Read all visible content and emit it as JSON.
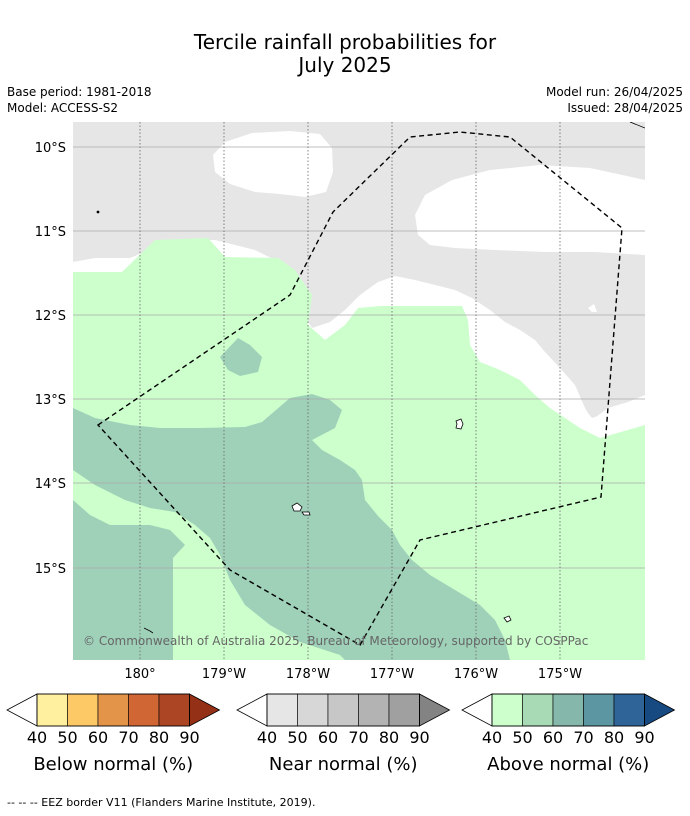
{
  "title_line1": "Tercile rainfall probabilities for",
  "title_line2": "July 2025",
  "meta": {
    "base_period": "Base period: 1981-2018",
    "model": "Model: ACCESS-S2",
    "model_run": "Model run: 26/04/2025",
    "issued": "Issued: 28/04/2025"
  },
  "map": {
    "lat_labels": [
      "10°S",
      "11°S",
      "12°S",
      "13°S",
      "14°S",
      "15°S"
    ],
    "lon_labels": [
      "180°",
      "179°W",
      "178°W",
      "177°W",
      "176°W",
      "175°W"
    ],
    "copyright": "© Commonwealth of Australia 2025, Bureau of Meteorology, supported by COSPPac",
    "colors": {
      "near_normal_40": "#e6e6e6",
      "above_normal_40": "#ccffcc",
      "above_normal_50": "#9fd1b9",
      "land_fill": "#ffffff",
      "grid": "#aaaaaa",
      "eez_border": "#000000"
    }
  },
  "colorbars": [
    {
      "label": "Below normal (%)",
      "ticks": [
        "40",
        "50",
        "60",
        "70",
        "80",
        "90"
      ],
      "colors": [
        "#fff0a0",
        "#fdc967",
        "#e39449",
        "#d06633",
        "#ac4523",
        "#943016"
      ]
    },
    {
      "label": "Near normal (%)",
      "ticks": [
        "40",
        "50",
        "60",
        "70",
        "80",
        "90"
      ],
      "colors": [
        "#e6e6e6",
        "#d7d7d7",
        "#c7c7c7",
        "#b3b3b3",
        "#a0a0a0",
        "#838383"
      ]
    },
    {
      "label": "Above normal (%)",
      "ticks": [
        "40",
        "50",
        "60",
        "70",
        "80",
        "90"
      ],
      "colors": [
        "#ccffcc",
        "#a8dab5",
        "#85b7ab",
        "#5c96a3",
        "#2f6498",
        "#184a82"
      ]
    }
  ],
  "footnote": "--  --  -- EEZ border V11 (Flanders Marine Institute, 2019)."
}
